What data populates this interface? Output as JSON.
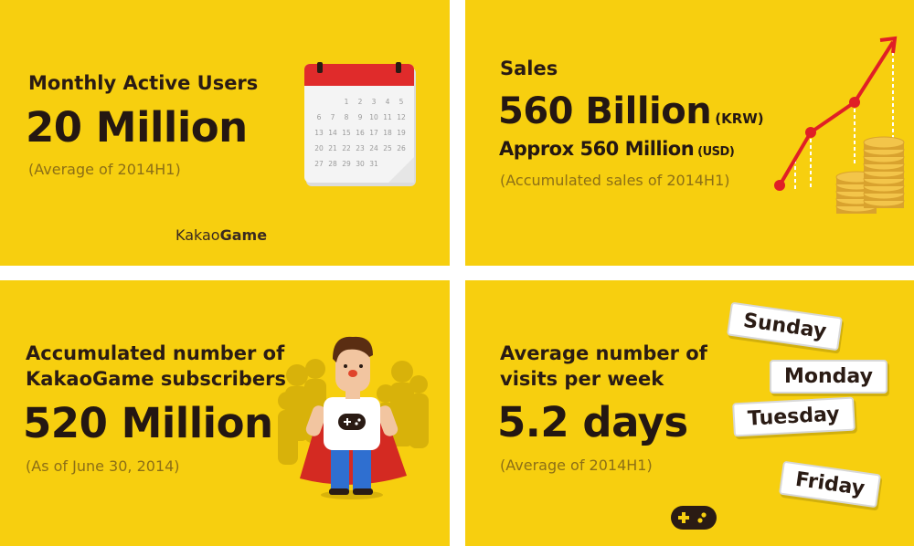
{
  "panels": {
    "mau": {
      "label": "Monthly Active Users",
      "value": "20 Million",
      "note": "(Average of 2014H1)",
      "brand_part1": "Kakao",
      "brand_part2": "Game",
      "calendar_days": [
        "1",
        "2",
        "3",
        "4",
        "5",
        "6",
        "7",
        "8",
        "9",
        "10",
        "11",
        "12",
        "13",
        "14",
        "15",
        "16",
        "17",
        "18",
        "19",
        "20",
        "21",
        "22",
        "23",
        "24",
        "25",
        "26",
        "27",
        "28",
        "29",
        "30",
        "31"
      ]
    },
    "sales": {
      "label": "Sales",
      "value": "560 Billion",
      "value_unit": "(KRW)",
      "approx": "Approx 560 Million",
      "approx_unit": "(USD)",
      "note": "(Accumulated sales of 2014H1)"
    },
    "subscribers": {
      "label_line1": "Accumulated number of",
      "label_line2": "KakaoGame subscribers",
      "value": "520 Million",
      "note": "(As of June 30, 2014)"
    },
    "visits": {
      "label_line1": "Average number of",
      "label_line2": "visits per week",
      "value": "5.2 days",
      "note": "(Average of 2014H1)",
      "days": [
        "Sunday",
        "Monday",
        "Tuesday",
        "Friday"
      ]
    }
  },
  "colors": {
    "background": "#f7cf0f",
    "text_dark": "#2a1b14",
    "text_muted": "#8c6f16",
    "accent_red": "#e01f26",
    "coin": "#f3c54a"
  },
  "icons": [
    "calendar-icon",
    "growth-arrow-icon",
    "coin-stack-icon",
    "gamer-hero-icon",
    "gamepad-icon"
  ]
}
